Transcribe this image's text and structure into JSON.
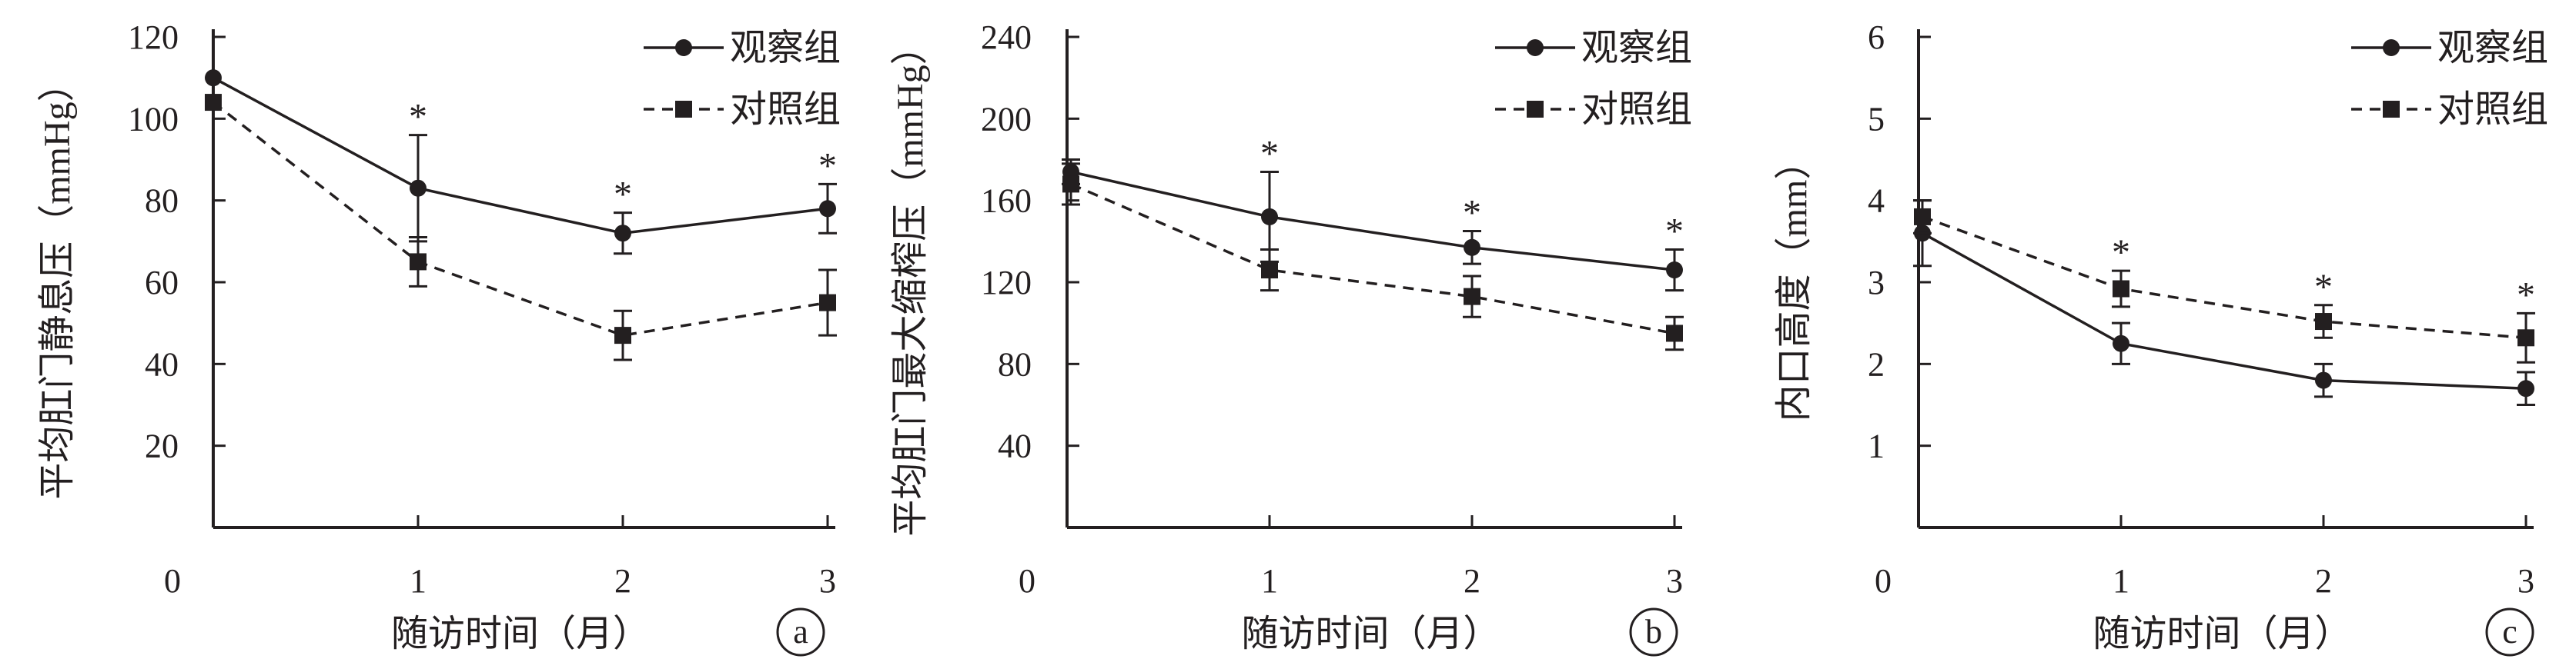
{
  "colors": {
    "ink": "#231f20",
    "background": "#ffffff"
  },
  "chart_data": [
    {
      "type": "line",
      "panel_label": "a",
      "xlabel": "随访时间（月）",
      "ylabel": "平均肛门静息压（mmHg）",
      "x_ticks": [
        "0",
        "1",
        "2",
        "3"
      ],
      "y_ticks": [
        "20",
        "40",
        "60",
        "80",
        "100",
        "120"
      ],
      "xlim": [
        0,
        3
      ],
      "ylim": [
        0,
        120
      ],
      "legend_position": "top-right",
      "grid": false,
      "significance_marker": "*",
      "significance_at": [
        1,
        2,
        3
      ],
      "series": [
        {
          "name": "观察组",
          "marker": "circle",
          "line": "solid",
          "x": [
            0,
            1,
            2,
            3
          ],
          "values": [
            110,
            83,
            72,
            78
          ],
          "error": [
            0,
            13,
            5,
            6
          ]
        },
        {
          "name": "对照组",
          "marker": "square",
          "line": "dashed",
          "x": [
            0,
            1,
            2,
            3
          ],
          "values": [
            104,
            65,
            47,
            55
          ],
          "error": [
            0,
            6,
            6,
            8
          ]
        }
      ]
    },
    {
      "type": "line",
      "panel_label": "b",
      "xlabel": "随访时间（月）",
      "ylabel": "平均肛门最大缩榨压（mmHg）",
      "x_ticks": [
        "0",
        "1",
        "2",
        "3"
      ],
      "y_ticks": [
        "40",
        "80",
        "120",
        "160",
        "200",
        "240"
      ],
      "xlim": [
        0,
        3
      ],
      "ylim": [
        0,
        240
      ],
      "legend_position": "top-right",
      "grid": false,
      "significance_marker": "*",
      "significance_at": [
        1,
        2,
        3
      ],
      "series": [
        {
          "name": "观察组",
          "marker": "circle",
          "line": "solid",
          "x": [
            0,
            1,
            2,
            3
          ],
          "values": [
            174,
            152,
            137,
            126
          ],
          "error": [
            6,
            22,
            8,
            10
          ]
        },
        {
          "name": "对照组",
          "marker": "square",
          "line": "dashed",
          "x": [
            0,
            1,
            2,
            3
          ],
          "values": [
            168,
            126,
            113,
            95
          ],
          "error": [
            10,
            10,
            10,
            8
          ]
        }
      ]
    },
    {
      "type": "line",
      "panel_label": "c",
      "xlabel": "随访时间（月）",
      "ylabel": "内口高度（mm）",
      "x_ticks": [
        "0",
        "1",
        "2",
        "3"
      ],
      "y_ticks": [
        "1",
        "2",
        "3",
        "4",
        "5",
        "6"
      ],
      "xlim": [
        0,
        3
      ],
      "ylim": [
        0,
        6
      ],
      "legend_position": "top-right",
      "grid": false,
      "significance_marker": "*",
      "significance_at": [
        1,
        2,
        3
      ],
      "series": [
        {
          "name": "观察组",
          "marker": "circle",
          "line": "solid",
          "x": [
            0,
            1,
            2,
            3
          ],
          "values": [
            3.6,
            2.25,
            1.8,
            1.7
          ],
          "error": [
            0.4,
            0.25,
            0.2,
            0.2
          ]
        },
        {
          "name": "对照组",
          "marker": "square",
          "line": "dashed",
          "x": [
            0,
            1,
            2,
            3
          ],
          "values": [
            3.8,
            2.92,
            2.52,
            2.32
          ],
          "error": [
            0.2,
            0.22,
            0.2,
            0.3
          ]
        }
      ]
    }
  ]
}
